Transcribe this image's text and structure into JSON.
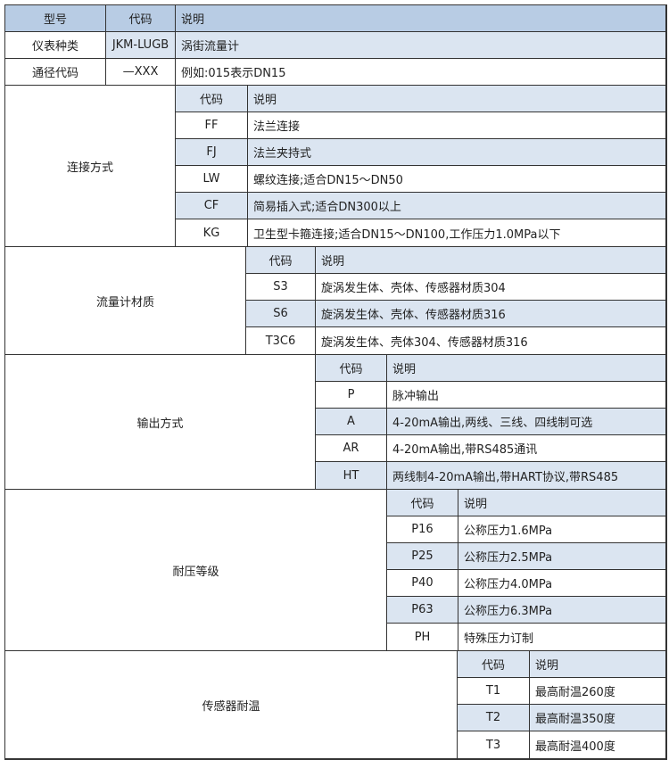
{
  "header": {
    "model": "型号",
    "code": "代码",
    "desc": "说明"
  },
  "top_rows": [
    {
      "label": "仪表种类",
      "code": "JKM-LUGB",
      "desc": "涡街流量计"
    },
    {
      "label": "通径代码",
      "code": "—XXX",
      "desc": "例如:015表示DN15"
    }
  ],
  "sections": [
    {
      "label": "连接方式",
      "code_header": "代码",
      "desc_header": "说明",
      "rows": [
        {
          "code": "FF",
          "desc": "法兰连接"
        },
        {
          "code": "FJ",
          "desc": "法兰夹持式"
        },
        {
          "code": "LW",
          "desc": "螺纹连接;适合DN15～DN50"
        },
        {
          "code": "CF",
          "desc": "简易插入式;适合DN300以上"
        },
        {
          "code": "KG",
          "desc": "卫生型卡箍连接;适合DN15～DN100,工作压力1.0MPa以下"
        }
      ]
    },
    {
      "label": "流量计材质",
      "code_header": "代码",
      "desc_header": "说明",
      "rows": [
        {
          "code": "S3",
          "desc": "旋涡发生体、壳体、传感器材质304"
        },
        {
          "code": "S6",
          "desc": "旋涡发生体、壳体、传感器材质316"
        },
        {
          "code": "T3C6",
          "desc": "旋涡发生体、壳体304、传感器材质316"
        }
      ]
    },
    {
      "label": "输出方式",
      "code_header": "代码",
      "desc_header": "说明",
      "rows": [
        {
          "code": "P",
          "desc": "脉冲输出"
        },
        {
          "code": "A",
          "desc": "4-20mA输出,两线、三线、四线制可选"
        },
        {
          "code": "AR",
          "desc": "4-20mA输出,带RS485通讯"
        },
        {
          "code": "HT",
          "desc": "两线制4-20mA输出,带HART协议,带RS485"
        }
      ]
    },
    {
      "label": "耐压等级",
      "code_header": "代码",
      "desc_header": "说明",
      "rows": [
        {
          "code": "P16",
          "desc": "公称压力1.6MPa"
        },
        {
          "code": "P25",
          "desc": "公称压力2.5MPa"
        },
        {
          "code": "P40",
          "desc": "公称压力4.0MPa"
        },
        {
          "code": "P63",
          "desc": "公称压力6.3MPa"
        },
        {
          "code": "PH",
          "desc": "特殊压力订制"
        }
      ]
    },
    {
      "label": "传感器耐温",
      "code_header": "代码",
      "desc_header": "说明",
      "rows": [
        {
          "code": "T1",
          "desc": "最高耐温260度"
        },
        {
          "code": "T2",
          "desc": "最高耐温350度"
        },
        {
          "code": "T3",
          "desc": "最高耐温400度"
        }
      ]
    }
  ],
  "colors": {
    "header": "#b8cce4",
    "light": "#dbe5f1",
    "border": "#333333"
  }
}
